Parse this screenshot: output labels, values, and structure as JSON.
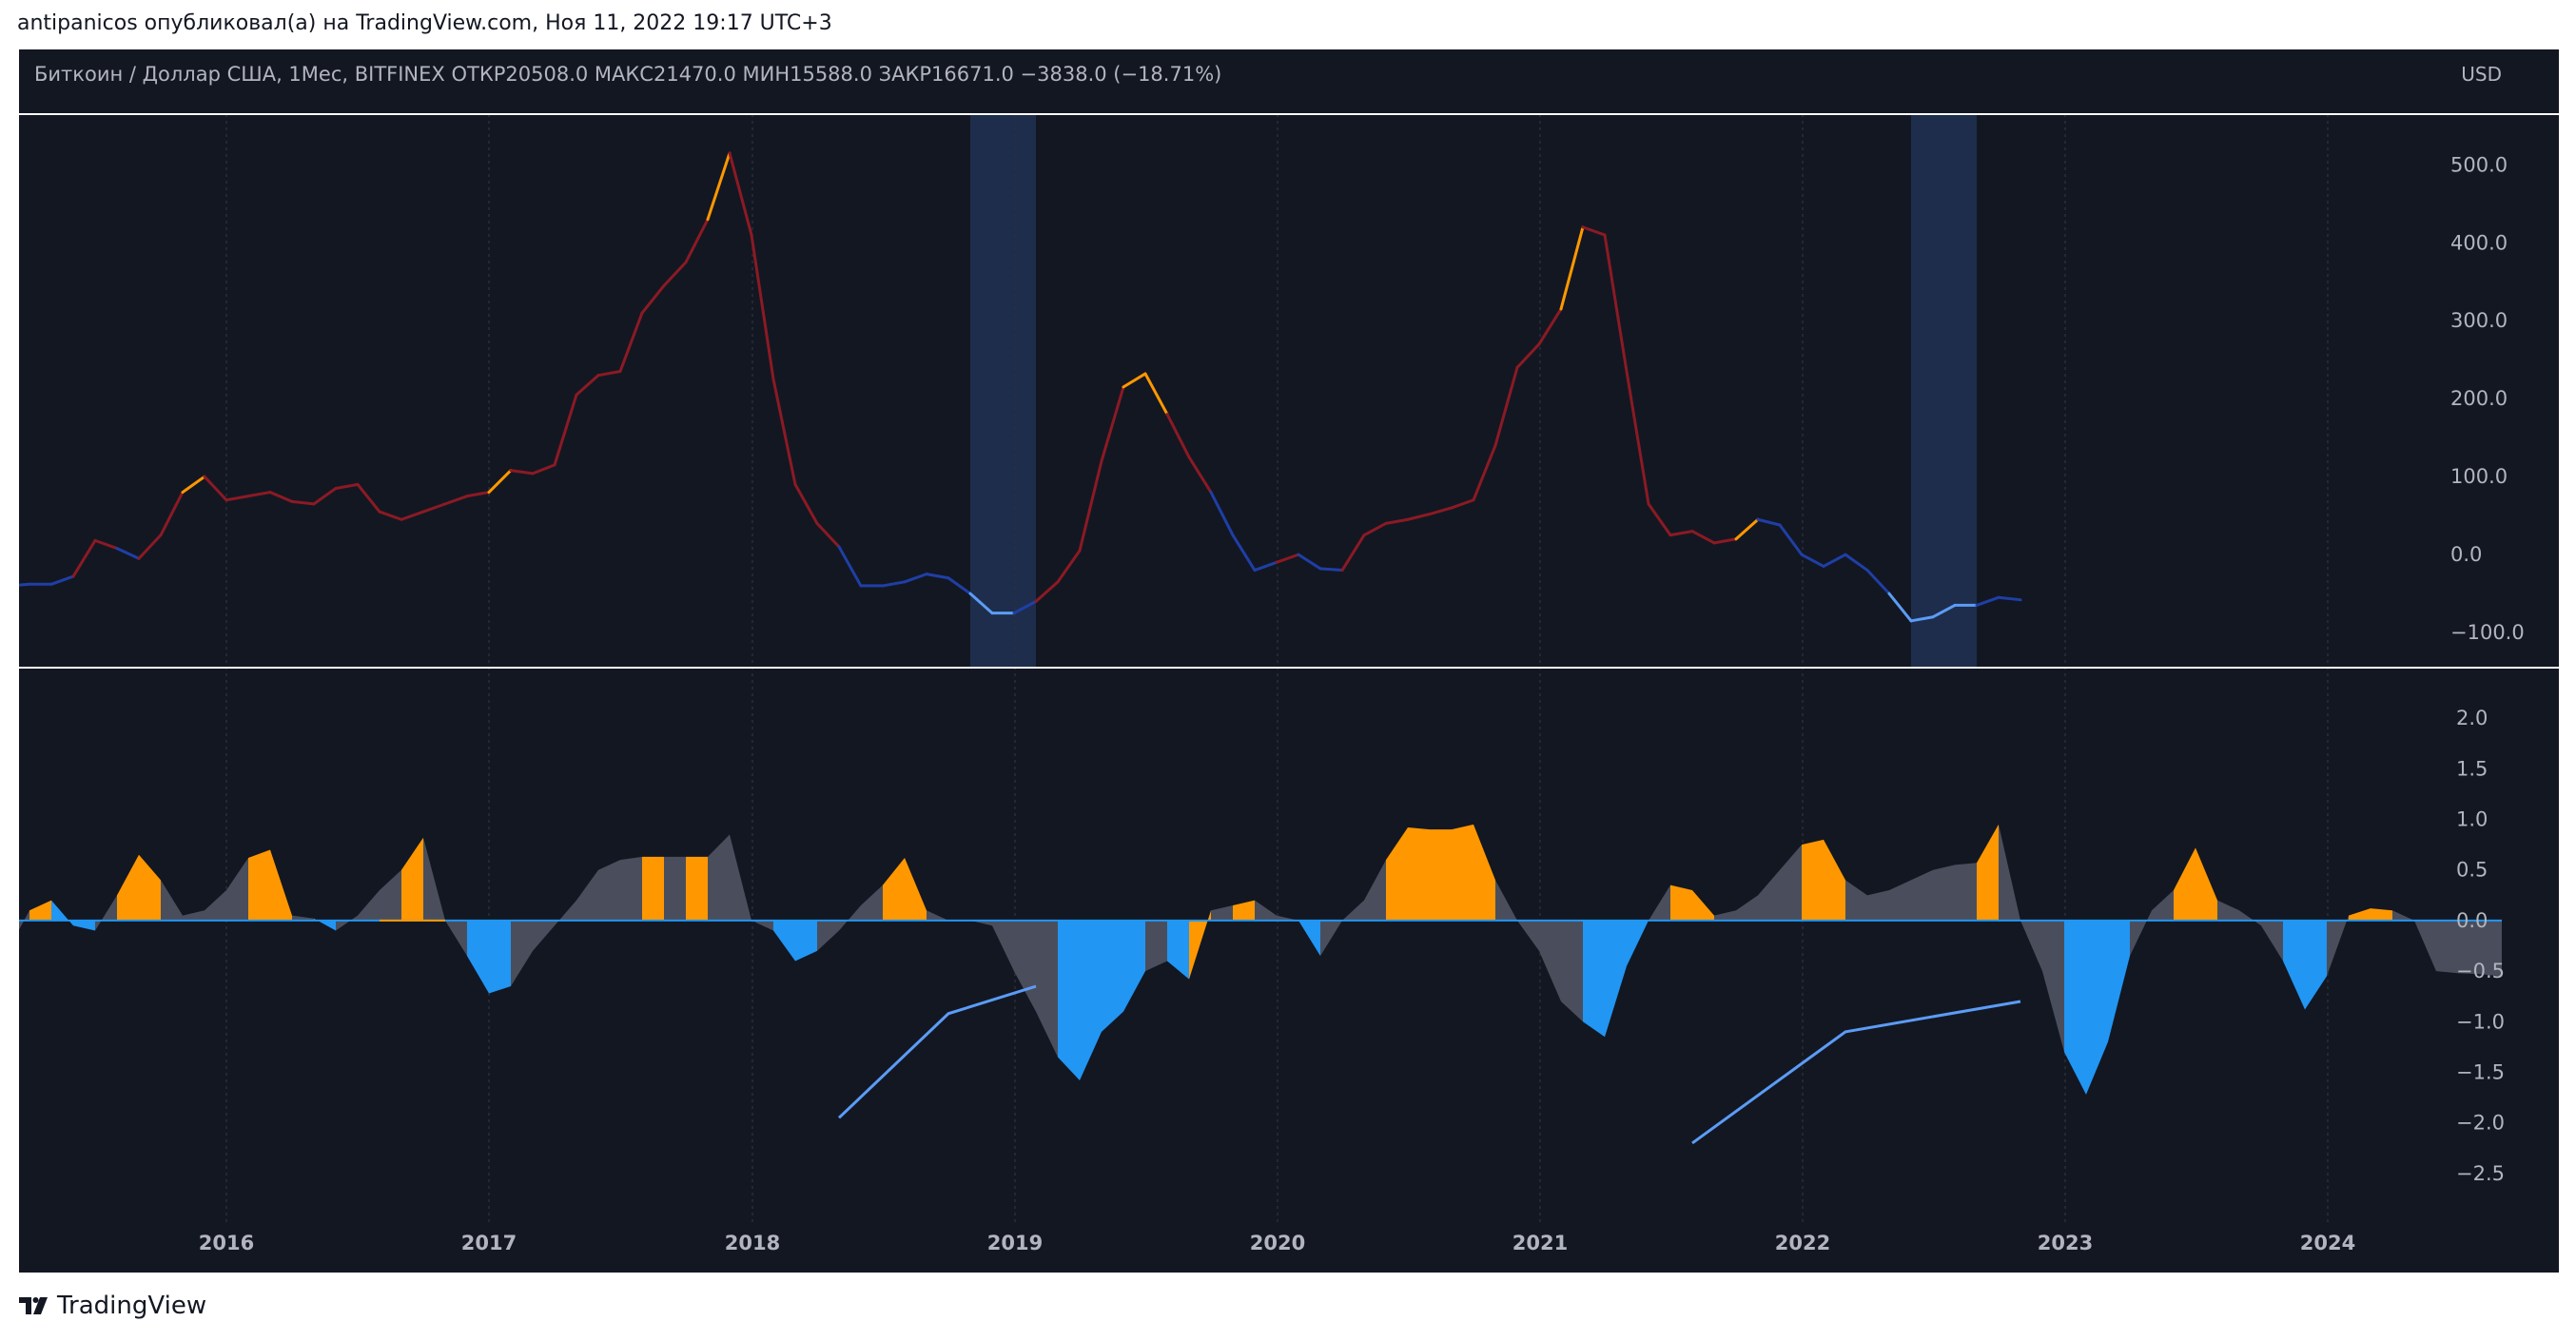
{
  "attribution": "antipanicos опубликовал(а) на TradingView.com, Ноя 11, 2022 19:17 UTC+3",
  "header": {
    "legend": "Биткоин / Доллар США, 1Мес, BITFINEX  ОТКР20508.0  МАКС21470.0  МИН15588.0  ЗАКР16671.0  −3838.0 (−18.71%)",
    "currency": "USD"
  },
  "footer": {
    "logo_text": "TradingView"
  },
  "colors": {
    "background": "#131722",
    "frame": "#ffffff",
    "red_line": "#8b1a24",
    "orange": "#ff9800",
    "dark_blue": "#1f3fa6",
    "light_blue": "#5b9cf6",
    "hist_blue": "#2196f3",
    "hist_gray": "#4a4e5c",
    "highlight": "#1e2d4b"
  },
  "chart_data": [
    {
      "type": "line",
      "title": "",
      "x_axis": "time (monthly)",
      "ylim": [
        -145,
        565
      ],
      "yticks": [
        "500.0",
        "400.0",
        "300.0",
        "200.0",
        "100.0",
        "0.0",
        "−100.0"
      ],
      "ytick_values": [
        500,
        400,
        300,
        200,
        100,
        0,
        -100
      ],
      "highlight_ranges": [
        [
          "2018-11",
          "2019-01"
        ],
        [
          "2022-06",
          "2022-08"
        ]
      ],
      "series": [
        {
          "x_start": "2015-03",
          "values": [
            -40,
            -38,
            -38,
            -28,
            18,
            8,
            -5,
            25,
            80,
            100,
            70,
            75,
            80,
            68,
            65,
            85,
            90,
            55,
            45,
            55,
            65,
            75,
            80,
            108,
            104,
            115,
            205,
            230,
            235,
            310,
            345,
            375,
            430,
            515,
            410,
            225,
            90,
            40,
            10,
            -40,
            -40,
            -35,
            -25,
            -30,
            -50,
            -75,
            -75,
            -60,
            -35,
            5,
            120,
            215,
            232,
            180,
            125,
            80,
            25,
            -20,
            -10,
            0,
            -18,
            -20,
            25,
            40,
            45,
            52,
            60,
            70,
            140,
            240,
            270,
            315,
            420,
            410,
            235,
            65,
            25,
            30,
            15,
            20,
            45,
            38,
            0,
            -15,
            0,
            -20,
            -50,
            -85,
            -80,
            -65,
            -65,
            -55,
            -58
          ],
          "colors": [
            "db",
            "db",
            "db",
            "db",
            "r",
            "r",
            "db",
            "r",
            "r",
            "o",
            "r",
            "r",
            "r",
            "r",
            "r",
            "r",
            "r",
            "r",
            "r",
            "r",
            "r",
            "r",
            "r",
            "o",
            "r",
            "r",
            "r",
            "r",
            "r",
            "r",
            "r",
            "r",
            "r",
            "o",
            "r",
            "r",
            "r",
            "r",
            "r",
            "db",
            "db",
            "db",
            "db",
            "db",
            "db",
            "lb",
            "lb",
            "db",
            "r",
            "r",
            "r",
            "r",
            "o",
            "o",
            "r",
            "r",
            "db",
            "db",
            "db",
            "r",
            "db",
            "db",
            "r",
            "r",
            "r",
            "r",
            "r",
            "r",
            "r",
            "r",
            "r",
            "r",
            "o",
            "r",
            "r",
            "r",
            "r",
            "r",
            "r",
            "r",
            "o",
            "db",
            "db",
            "db",
            "db",
            "db",
            "db",
            "lb",
            "lb",
            "lb",
            "lb",
            "db",
            "db"
          ]
        }
      ]
    },
    {
      "type": "area",
      "title": "",
      "ylim": [
        -3.0,
        2.5
      ],
      "yticks": [
        "2.0",
        "1.5",
        "1.0",
        "0.5",
        "0.0",
        "−0.5",
        "−1.0",
        "−1.5",
        "−2.0",
        "−2.5"
      ],
      "ytick_values": [
        2.0,
        1.5,
        1.0,
        0.5,
        0.0,
        -0.5,
        -1.0,
        -1.5,
        -2.0,
        -2.5
      ],
      "series": [
        {
          "x_start": "2015-03",
          "values": [
            -0.3,
            0.1,
            0.2,
            -0.05,
            -0.1,
            0.25,
            0.65,
            0.4,
            0.05,
            0.1,
            0.3,
            0.62,
            0.7,
            0.05,
            0.02,
            -0.1,
            0.05,
            0.3,
            0.5,
            0.82,
            0.0,
            -0.35,
            -0.72,
            -0.65,
            -0.3,
            -0.05,
            0.2,
            0.5,
            0.6,
            0.63,
            0.63,
            0.63,
            0.63,
            0.85,
            0.0,
            -0.1,
            -0.4,
            -0.3,
            -0.1,
            0.15,
            0.35,
            0.62,
            0.1,
            0.0,
            0.0,
            -0.05,
            -0.5,
            -0.9,
            -1.35,
            -1.58,
            -1.1,
            -0.9,
            -0.5,
            -0.4,
            -0.58,
            0.1,
            0.15,
            0.2,
            0.05,
            0.0,
            -0.35,
            0.0,
            0.2,
            0.6,
            0.92,
            0.9,
            0.9,
            0.95,
            0.4,
            0.0,
            -0.3,
            -0.8,
            -1.0,
            -1.15,
            -0.45,
            0.0,
            0.35,
            0.3,
            0.05,
            0.1,
            0.25,
            0.5,
            0.75,
            0.8,
            0.4,
            0.25,
            0.3,
            0.4,
            0.5,
            0.55,
            0.57,
            0.95,
            0.0,
            -0.5,
            -1.3,
            -1.72,
            -1.2,
            -0.35,
            0.1,
            0.3,
            0.72,
            0.2,
            0.1,
            -0.05,
            -0.4,
            -0.88,
            -0.55,
            0.05,
            0.12,
            0.1,
            0.0,
            -0.5,
            -0.52,
            -0.53,
            -0.55
          ],
          "colors": [
            "g",
            "g",
            "o",
            "b",
            "b",
            "g",
            "o",
            "o",
            "g",
            "g",
            "g",
            "g",
            "o",
            "o",
            "g",
            "b",
            "g",
            "g",
            "g",
            "o",
            "g",
            "g",
            "b",
            "b",
            "g",
            "g",
            "g",
            "g",
            "g",
            "g",
            "o",
            "g",
            "o",
            "g",
            "g",
            "g",
            "b",
            "b",
            "g",
            "g",
            "g",
            "o",
            "o",
            "g",
            "g",
            "g",
            "g",
            "g",
            "g",
            "b",
            "b",
            "b",
            "b",
            "g",
            "b",
            "o",
            "g",
            "o",
            "g",
            "g",
            "b",
            "g",
            "g",
            "g",
            "o",
            "o",
            "o",
            "o",
            "o",
            "g",
            "g",
            "g",
            "g",
            "b",
            "b",
            "b",
            "g",
            "o",
            "o",
            "g",
            "g",
            "g",
            "g",
            "o",
            "o",
            "g",
            "g",
            "g",
            "g",
            "g",
            "g",
            "o",
            "g",
            "g",
            "g",
            "b",
            "b",
            "b",
            "g",
            "g",
            "o",
            "o",
            "g",
            "g",
            "g",
            "b",
            "b",
            "g",
            "o",
            "o",
            "g",
            "g",
            "g",
            "g",
            "g"
          ]
        }
      ],
      "trendlines": [
        {
          "points": [
            [
              "2018-05",
              -1.95
            ],
            [
              "2018-10",
              -0.92
            ],
            [
              "2019-02",
              -0.65
            ]
          ]
        },
        {
          "points": [
            [
              "2021-08",
              -2.2
            ],
            [
              "2022-03",
              -1.1
            ],
            [
              "2022-11",
              -0.8
            ]
          ]
        }
      ]
    }
  ],
  "x_axis": {
    "ticks": [
      "2016",
      "2017",
      "2018",
      "2019",
      "2020",
      "2021",
      "2022",
      "2023",
      "2024"
    ]
  }
}
